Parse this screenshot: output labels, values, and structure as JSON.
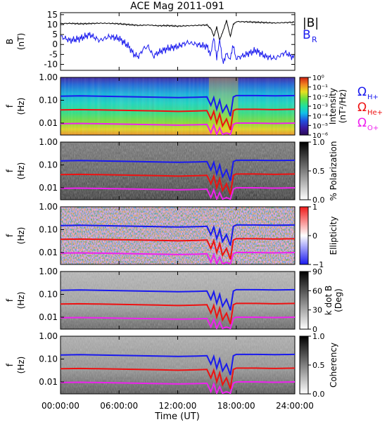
{
  "title": "ACE Mag 2011-091",
  "colors": {
    "B": "#000000",
    "BR": "#1a1aee",
    "H": "#1a1aee",
    "He": "#ee1111",
    "O": "#ee22ee"
  },
  "chart_data": [
    {
      "type": "line",
      "title": "ACE Mag 2011-091",
      "ylabel": [
        "B",
        "(nT)"
      ],
      "yticks": [
        "15",
        "10",
        "5",
        "0",
        "-5",
        "-10"
      ],
      "ylim": [
        -13,
        16
      ],
      "xlim": [
        0,
        24
      ],
      "series": [
        {
          "name": "|B|",
          "x": [
            0,
            1,
            2,
            3,
            4,
            5,
            6,
            7,
            8,
            9,
            10,
            11,
            12,
            13,
            14,
            15,
            15.4,
            15.7,
            16,
            16.3,
            16.6,
            17,
            17.4,
            17.7,
            18,
            19,
            20,
            21,
            22,
            23,
            24
          ],
          "values": [
            10.5,
            10.6,
            10.4,
            10.5,
            10.7,
            10.6,
            10.4,
            10,
            9.6,
            9.8,
            9.4,
            9.5,
            9.2,
            9.4,
            9.6,
            9.8,
            8,
            4,
            9,
            2,
            6,
            12,
            4,
            10,
            11.5,
            11.4,
            11.2,
            11,
            10.8,
            11,
            11.2
          ]
        },
        {
          "name": "B_R",
          "x": [
            0,
            1,
            2,
            3,
            4,
            5,
            6,
            7,
            7.5,
            8,
            8.5,
            9,
            9.5,
            10,
            11,
            12,
            13,
            14,
            15,
            15.4,
            15.7,
            16,
            16.3,
            16.6,
            17,
            17.4,
            17.7,
            18,
            19,
            20,
            21,
            22,
            23,
            24
          ],
          "values": [
            4,
            2,
            3,
            5,
            2,
            4,
            3,
            -1,
            -5,
            -6,
            -2,
            -1,
            -6,
            -4,
            -2,
            -1,
            1,
            0,
            -1,
            -5,
            3,
            -6,
            2,
            -9,
            -5,
            -7,
            -1,
            -7,
            -5,
            -3,
            -6,
            -7,
            -4,
            -7
          ]
        }
      ],
      "legend": [
        "|B|",
        "B",
        "R"
      ]
    },
    {
      "type": "heatmap",
      "ylabel": [
        "f",
        "(Hz)"
      ],
      "yticks": [
        "1.00",
        "0.10",
        "0.01"
      ],
      "ylim": [
        0.003,
        1.0
      ],
      "xlim": [
        0,
        24
      ],
      "colorbar": {
        "label": [
          "Intensity",
          "(nT²/Hz)"
        ],
        "ticks": [
          "10⁰",
          "10⁻¹",
          "10⁻²",
          "10⁻³",
          "10⁻⁴",
          "10⁻⁵",
          "10⁻⁶"
        ],
        "range": [
          -6,
          0
        ]
      },
      "overlay_legend": [
        {
          "label": "Ω",
          "sub": "H+",
          "color": "#1a1aee"
        },
        {
          "label": "Ω",
          "sub": "He+",
          "color": "#ee1111"
        },
        {
          "label": "Ω",
          "sub": "O+",
          "color": "#ee22ee"
        }
      ]
    },
    {
      "type": "heatmap",
      "ylabel": [
        "f",
        "(Hz)"
      ],
      "yticks": [
        "1.00",
        "0.10",
        "0.01"
      ],
      "colorbar": {
        "label": [
          "% Polarization"
        ],
        "ticks": [
          "1.0",
          "0.5",
          "0.0"
        ],
        "range": [
          0,
          1
        ]
      }
    },
    {
      "type": "heatmap",
      "ylabel": [
        "f",
        "(Hz)"
      ],
      "yticks": [
        "1.00",
        "0.10",
        "0.01"
      ],
      "colorbar": {
        "label": [
          "Ellipticity"
        ],
        "ticks": [
          "1",
          "0",
          "−1"
        ],
        "range": [
          -1,
          1
        ]
      }
    },
    {
      "type": "heatmap",
      "ylabel": [
        "f",
        "(Hz)"
      ],
      "yticks": [
        "1.00",
        "0.10",
        "0.01"
      ],
      "colorbar": {
        "label": [
          "k dot B",
          "(Deg)"
        ],
        "ticks": [
          "90",
          "60",
          "30",
          "0"
        ],
        "range": [
          0,
          90
        ]
      }
    },
    {
      "type": "heatmap",
      "ylabel": [
        "f",
        "(Hz)"
      ],
      "yticks": [
        "1.00",
        "0.10",
        "0.01"
      ],
      "colorbar": {
        "label": [
          "Coherency"
        ],
        "ticks": [
          "1.0",
          "0.5",
          "0.0"
        ],
        "range": [
          0,
          1
        ]
      }
    }
  ],
  "gyro": {
    "x": [
      0,
      2,
      4,
      6,
      8,
      10,
      12,
      14,
      15,
      15.4,
      15.7,
      16,
      16.3,
      16.6,
      17,
      17.4,
      17.7,
      18,
      20,
      22,
      24
    ],
    "H": [
      0.15,
      0.155,
      0.15,
      0.145,
      0.14,
      0.135,
      0.13,
      0.135,
      0.14,
      0.06,
      0.13,
      0.04,
      0.1,
      0.03,
      0.06,
      0.02,
      0.14,
      0.16,
      0.16,
      0.155,
      0.16
    ]
  },
  "xaxis": {
    "label": "Time (UT)",
    "ticks": [
      "00:00:00",
      "06:00:00",
      "12:00:00",
      "18:00:00",
      "24:00:00"
    ],
    "values": [
      0,
      6,
      12,
      18,
      24
    ]
  }
}
